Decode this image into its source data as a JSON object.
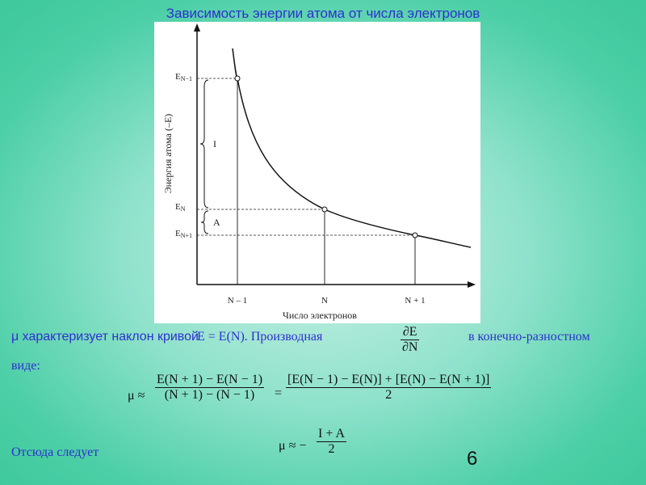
{
  "slide": {
    "title": "Зависимость энергии атома от числа электронов",
    "page_number": "6"
  },
  "figure": {
    "y_axis_label": "Энергия атома (–E)",
    "x_axis_label": "Число электронов",
    "y_ticks": [
      "E",
      "N−1",
      "E",
      "N",
      "E",
      "N+1"
    ],
    "x_ticks": [
      "N – 1",
      "N",
      "N + 1"
    ],
    "brace_labels": [
      "I",
      "A"
    ]
  },
  "text": {
    "line1_a": "μ характеризует наклон кривой",
    "line1_b": "E = E(N). Производная",
    "deriv_num": "∂E",
    "deriv_den": "∂N",
    "line1_c": "в конечно-разностном",
    "line2": "виде:",
    "conclusion": "Отсюда следует"
  },
  "equations": {
    "mu_approx": "μ ≈",
    "f1_num": "E(N + 1) − E(N − 1)",
    "f1_den": "(N + 1) − (N − 1)",
    "eq_sign": "=",
    "f2_num": "[E(N − 1) − E(N)] + [E(N) − E(N + 1)]",
    "f2_den": "2",
    "mu_final": "μ ≈ −",
    "f3_num": "I + A",
    "f3_den": "2"
  }
}
